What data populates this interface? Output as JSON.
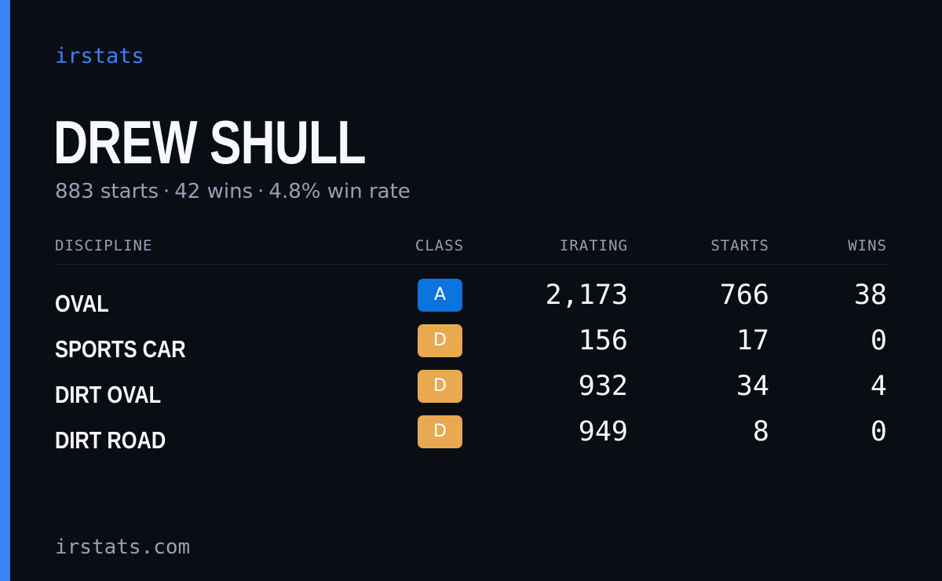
{
  "brand": "irstats",
  "player": {
    "name": "DREW SHULL",
    "starts_text": "883 starts",
    "wins_text": "42 wins",
    "win_rate_text": "4.8% win rate",
    "separator": "·"
  },
  "table": {
    "headers": {
      "discipline": "DISCIPLINE",
      "class": "CLASS",
      "irating": "IRATING",
      "starts": "STARTS",
      "wins": "WINS"
    },
    "rows": [
      {
        "discipline": "OVAL",
        "class": "A",
        "class_color": "#0b74de",
        "irating": "2,173",
        "starts": "766",
        "wins": "38"
      },
      {
        "discipline": "SPORTS CAR",
        "class": "D",
        "class_color": "#e8a950",
        "irating": "156",
        "starts": "17",
        "wins": "0"
      },
      {
        "discipline": "DIRT OVAL",
        "class": "D",
        "class_color": "#e8a950",
        "irating": "932",
        "starts": "34",
        "wins": "4"
      },
      {
        "discipline": "DIRT ROAD",
        "class": "D",
        "class_color": "#e8a950",
        "irating": "949",
        "starts": "8",
        "wins": "0"
      }
    ]
  },
  "footer": "irstats.com",
  "colors": {
    "background": "#0a0d14",
    "accent": "#3b82f6",
    "text_primary": "#f8f9fb",
    "text_muted": "#94a0b4"
  }
}
